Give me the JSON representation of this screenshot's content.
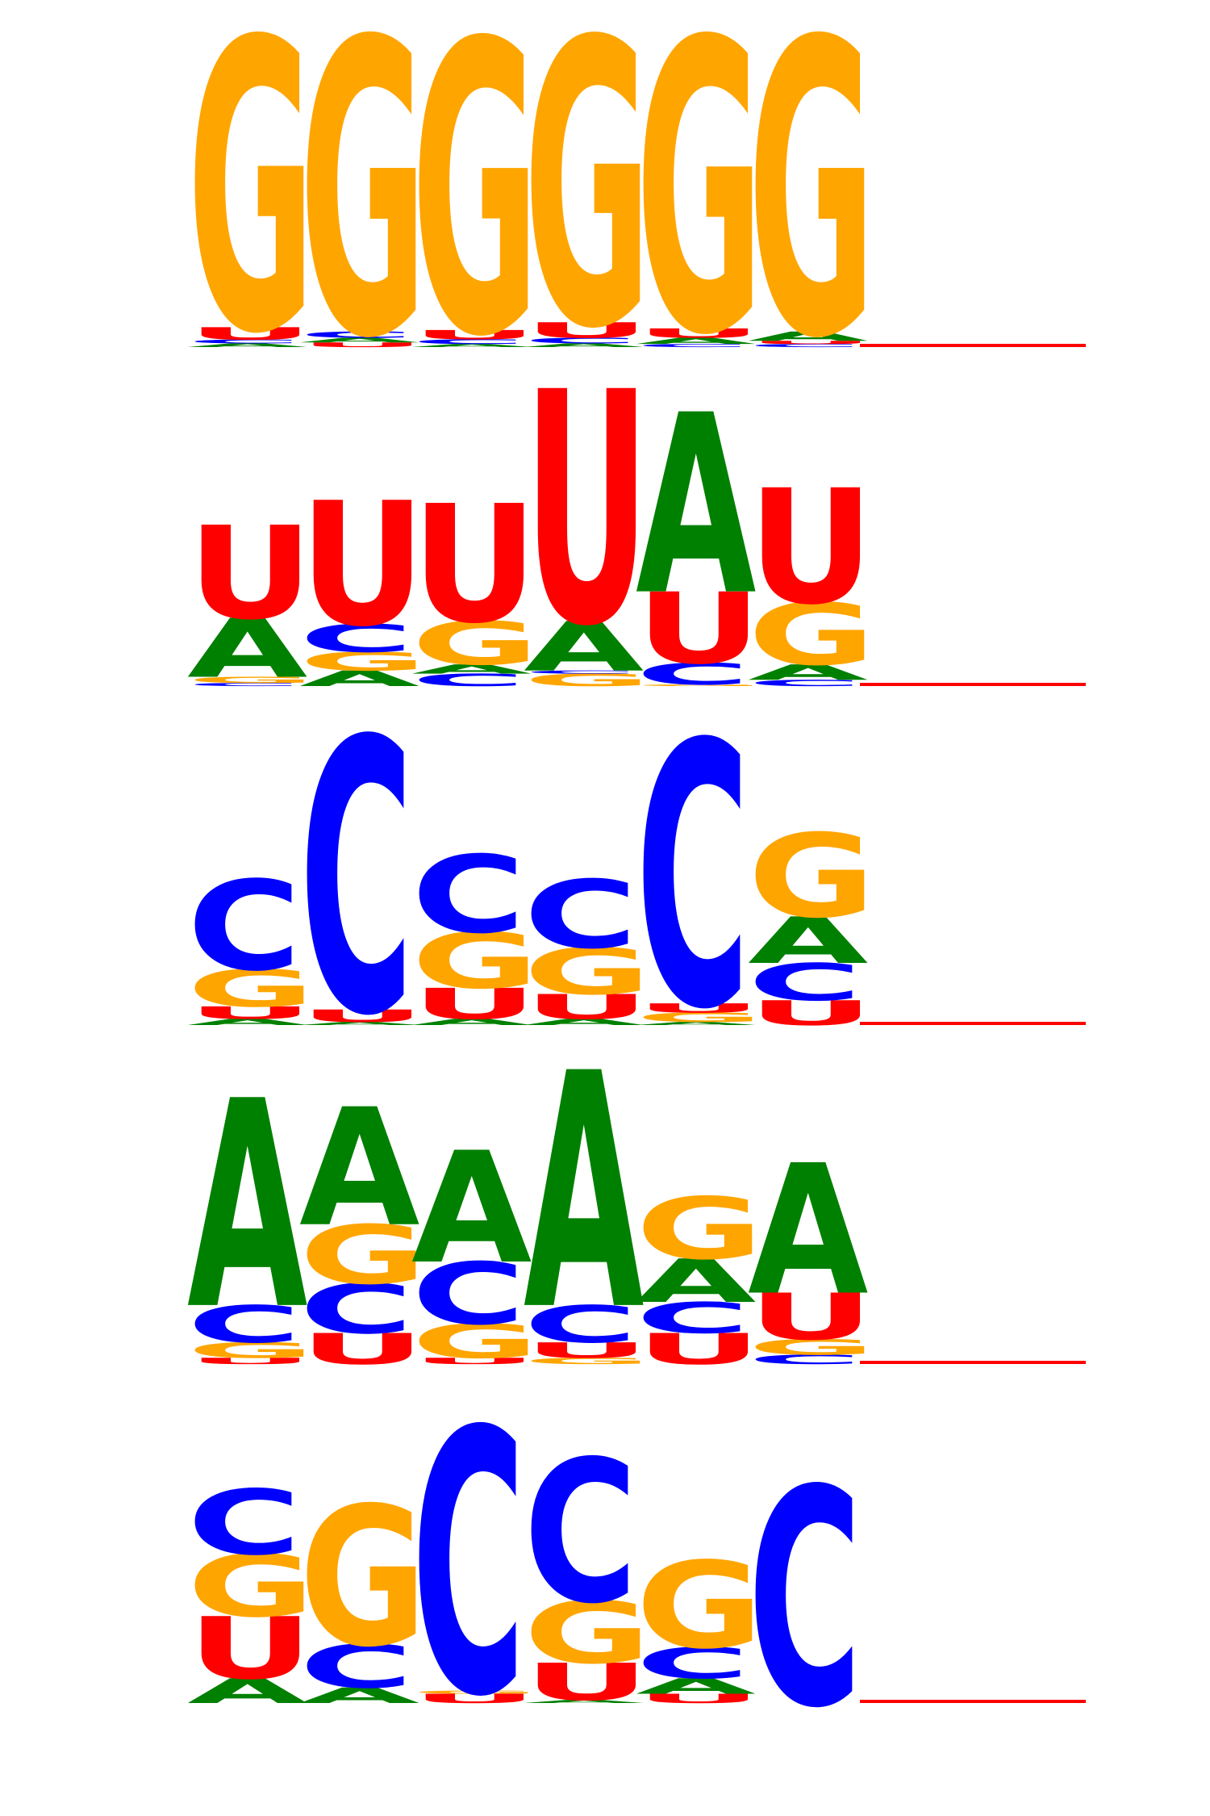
{
  "colors": {
    "A": "#008000",
    "C": "#0000ff",
    "G": "#ffa500",
    "U": "#ff0000",
    "baseline": "#ff0000"
  },
  "motifs": [
    {
      "positions": [
        [
          {
            "b": "A",
            "h": 0.012
          },
          {
            "b": "C",
            "h": 0.012
          },
          {
            "b": "U",
            "h": 0.04
          },
          {
            "b": "G",
            "h": 0.936
          }
        ],
        [
          {
            "b": "U",
            "h": 0.015
          },
          {
            "b": "A",
            "h": 0.015
          },
          {
            "b": "C",
            "h": 0.02
          },
          {
            "b": "G",
            "h": 0.95
          }
        ],
        [
          {
            "b": "A",
            "h": 0.01
          },
          {
            "b": "C",
            "h": 0.015
          },
          {
            "b": "U",
            "h": 0.03
          },
          {
            "b": "G",
            "h": 0.94
          }
        ],
        [
          {
            "b": "A",
            "h": 0.012
          },
          {
            "b": "C",
            "h": 0.018
          },
          {
            "b": "U",
            "h": 0.05
          },
          {
            "b": "G",
            "h": 0.92
          }
        ],
        [
          {
            "b": "C",
            "h": 0.01
          },
          {
            "b": "A",
            "h": 0.02
          },
          {
            "b": "U",
            "h": 0.03
          },
          {
            "b": "G",
            "h": 0.94
          }
        ],
        [
          {
            "b": "C",
            "h": 0.01
          },
          {
            "b": "U",
            "h": 0.01
          },
          {
            "b": "A",
            "h": 0.03
          },
          {
            "b": "G",
            "h": 0.95
          }
        ]
      ]
    },
    {
      "positions": [
        [
          {
            "b": "C",
            "h": 0.01
          },
          {
            "b": "G",
            "h": 0.02
          },
          {
            "b": "A",
            "h": 0.19
          },
          {
            "b": "U",
            "h": 0.3
          }
        ],
        [
          {
            "b": "A",
            "h": 0.05
          },
          {
            "b": "G",
            "h": 0.06
          },
          {
            "b": "C",
            "h": 0.09
          },
          {
            "b": "U",
            "h": 0.4
          }
        ],
        [
          {
            "b": "C",
            "h": 0.04
          },
          {
            "b": "A",
            "h": 0.03
          },
          {
            "b": "G",
            "h": 0.14
          },
          {
            "b": "U",
            "h": 0.38
          }
        ],
        [
          {
            "b": "G",
            "h": 0.04
          },
          {
            "b": "C",
            "h": 0.01
          },
          {
            "b": "A",
            "h": 0.16
          },
          {
            "b": "U",
            "h": 0.75
          }
        ],
        [
          {
            "b": "G",
            "h": 0.005
          },
          {
            "b": "C",
            "h": 0.07
          },
          {
            "b": "U",
            "h": 0.23
          },
          {
            "b": "A",
            "h": 0.58
          }
        ],
        [
          {
            "b": "C",
            "h": 0.02
          },
          {
            "b": "A",
            "h": 0.05
          },
          {
            "b": "G",
            "h": 0.2
          },
          {
            "b": "U",
            "h": 0.37
          }
        ]
      ]
    },
    {
      "positions": [
        [
          {
            "b": "A",
            "h": 0.02
          },
          {
            "b": "U",
            "h": 0.04
          },
          {
            "b": "G",
            "h": 0.12
          },
          {
            "b": "C",
            "h": 0.29
          }
        ],
        [
          {
            "b": "A",
            "h": 0.01
          },
          {
            "b": "U",
            "h": 0.04
          },
          {
            "b": "C",
            "h": 0.88
          }
        ],
        [
          {
            "b": "A",
            "h": 0.02
          },
          {
            "b": "U",
            "h": 0.1
          },
          {
            "b": "G",
            "h": 0.18
          },
          {
            "b": "C",
            "h": 0.25
          }
        ],
        [
          {
            "b": "A",
            "h": 0.02
          },
          {
            "b": "U",
            "h": 0.08
          },
          {
            "b": "G",
            "h": 0.15
          },
          {
            "b": "C",
            "h": 0.22
          }
        ],
        [
          {
            "b": "A",
            "h": 0.01
          },
          {
            "b": "G",
            "h": 0.03
          },
          {
            "b": "U",
            "h": 0.03
          },
          {
            "b": "C",
            "h": 0.85
          }
        ],
        [
          {
            "b": "U",
            "h": 0.08
          },
          {
            "b": "C",
            "h": 0.12
          },
          {
            "b": "A",
            "h": 0.15
          },
          {
            "b": "G",
            "h": 0.27
          }
        ]
      ]
    },
    {
      "positions": [
        [
          {
            "b": "U",
            "h": 0.02
          },
          {
            "b": "G",
            "h": 0.05
          },
          {
            "b": "C",
            "h": 0.12
          },
          {
            "b": "A",
            "h": 0.67
          }
        ],
        [
          {
            "b": "U",
            "h": 0.1
          },
          {
            "b": "C",
            "h": 0.16
          },
          {
            "b": "G",
            "h": 0.19
          },
          {
            "b": "A",
            "h": 0.38
          }
        ],
        [
          {
            "b": "U",
            "h": 0.02
          },
          {
            "b": "G",
            "h": 0.11
          },
          {
            "b": "C",
            "h": 0.2
          },
          {
            "b": "A",
            "h": 0.36
          }
        ],
        [
          {
            "b": "G",
            "h": 0.02
          },
          {
            "b": "U",
            "h": 0.05
          },
          {
            "b": "C",
            "h": 0.12
          },
          {
            "b": "A",
            "h": 0.76
          }
        ],
        [
          {
            "b": "U",
            "h": 0.1
          },
          {
            "b": "C",
            "h": 0.1
          },
          {
            "b": "A",
            "h": 0.14
          },
          {
            "b": "G",
            "h": 0.2
          }
        ],
        [
          {
            "b": "C",
            "h": 0.03
          },
          {
            "b": "G",
            "h": 0.05
          },
          {
            "b": "U",
            "h": 0.15
          },
          {
            "b": "A",
            "h": 0.42
          }
        ]
      ]
    },
    {
      "positions": [
        [
          {
            "b": "A",
            "h": 0.08
          },
          {
            "b": "U",
            "h": 0.2
          },
          {
            "b": "G",
            "h": 0.2
          },
          {
            "b": "C",
            "h": 0.21
          }
        ],
        [
          {
            "b": "A",
            "h": 0.05
          },
          {
            "b": "C",
            "h": 0.14
          },
          {
            "b": "G",
            "h": 0.45
          }
        ],
        [
          {
            "b": "U",
            "h": 0.03
          },
          {
            "b": "G",
            "h": 0.01
          },
          {
            "b": "C",
            "h": 0.85
          }
        ],
        [
          {
            "b": "A",
            "h": 0.01
          },
          {
            "b": "U",
            "h": 0.12
          },
          {
            "b": "G",
            "h": 0.2
          },
          {
            "b": "C",
            "h": 0.46
          }
        ],
        [
          {
            "b": "U",
            "h": 0.03
          },
          {
            "b": "A",
            "h": 0.05
          },
          {
            "b": "C",
            "h": 0.1
          },
          {
            "b": "G",
            "h": 0.28
          }
        ],
        [
          {
            "b": "C",
            "h": 0.7
          }
        ]
      ]
    }
  ]
}
